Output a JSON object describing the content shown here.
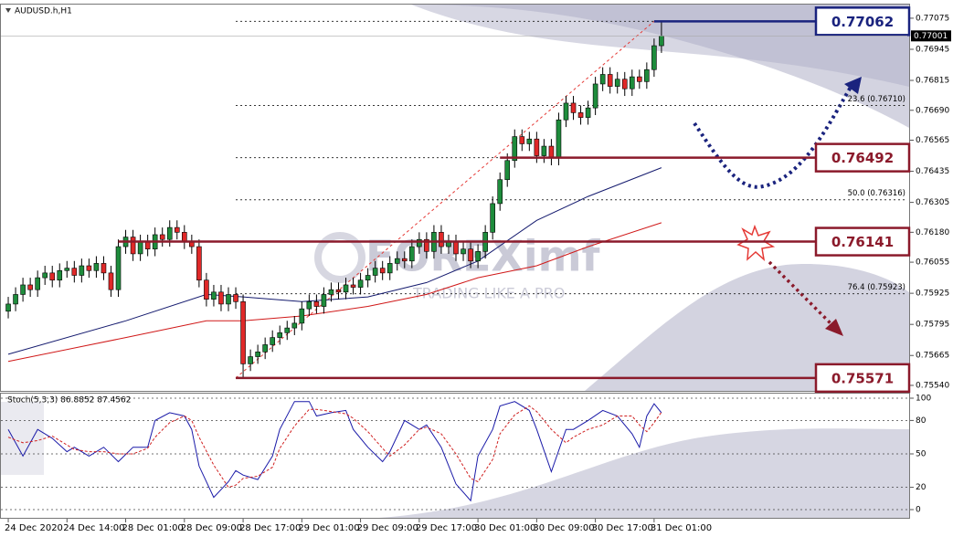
{
  "chart_data": [
    {
      "type": "candlestick",
      "title": "AUDUSD.h,H1",
      "open": [
        0.7585,
        0.7588,
        0.7592,
        0.7596,
        0.7594,
        0.7599,
        0.7601,
        0.7598,
        0.7602,
        0.7603,
        0.76,
        0.7604,
        0.7602,
        0.7605,
        0.7601,
        0.7594,
        0.7612,
        0.7616,
        0.7609,
        0.7614,
        0.7611,
        0.7617,
        0.7615,
        0.762,
        0.7618,
        0.7614,
        0.7612,
        0.7598,
        0.759,
        0.7593,
        0.7588,
        0.7592,
        0.7589,
        0.7563,
        0.7566,
        0.7568,
        0.7571,
        0.7574,
        0.7576,
        0.7578,
        0.758,
        0.7586,
        0.7589,
        0.7587,
        0.7592,
        0.7594,
        0.7593,
        0.7596,
        0.7595,
        0.7598,
        0.76,
        0.7603,
        0.7601,
        0.7605,
        0.7607,
        0.7606,
        0.7612,
        0.7615,
        0.761,
        0.7618,
        0.7612,
        0.7614,
        0.7609,
        0.7611,
        0.7606,
        0.761,
        0.7618,
        0.763,
        0.764,
        0.7648,
        0.7658,
        0.7655,
        0.7657,
        0.765,
        0.7654,
        0.7649,
        0.7665,
        0.7672,
        0.7668,
        0.7666,
        0.767,
        0.768,
        0.7684,
        0.7679,
        0.7682,
        0.7678,
        0.7683,
        0.7681,
        0.7686,
        0.7696
      ],
      "high": [
        0.7591,
        0.7595,
        0.7599,
        0.7599,
        0.7602,
        0.7604,
        0.7604,
        0.7605,
        0.7606,
        0.7606,
        0.7607,
        0.7607,
        0.7608,
        0.7608,
        0.7604,
        0.7615,
        0.7619,
        0.7619,
        0.7617,
        0.7617,
        0.762,
        0.762,
        0.7623,
        0.7623,
        0.7621,
        0.7617,
        0.7615,
        0.7601,
        0.7596,
        0.7596,
        0.7595,
        0.7595,
        0.7592,
        0.7569,
        0.7571,
        0.7574,
        0.7577,
        0.7579,
        0.7581,
        0.7583,
        0.7589,
        0.7592,
        0.7592,
        0.7595,
        0.7597,
        0.7597,
        0.7599,
        0.7599,
        0.7601,
        0.7603,
        0.7606,
        0.7606,
        0.7608,
        0.761,
        0.761,
        0.7615,
        0.7618,
        0.7618,
        0.7621,
        0.7621,
        0.7617,
        0.7617,
        0.7614,
        0.7614,
        0.7613,
        0.7621,
        0.7633,
        0.7643,
        0.7651,
        0.7661,
        0.7661,
        0.766,
        0.766,
        0.7657,
        0.7657,
        0.7668,
        0.7675,
        0.7675,
        0.7671,
        0.7673,
        0.7683,
        0.7687,
        0.7687,
        0.7685,
        0.7685,
        0.7686,
        0.7686,
        0.7689,
        0.7699,
        0.77062
      ],
      "low": [
        0.7582,
        0.7585,
        0.7589,
        0.7591,
        0.7591,
        0.7596,
        0.7595,
        0.7595,
        0.7599,
        0.7597,
        0.7597,
        0.7599,
        0.7599,
        0.7598,
        0.7591,
        0.7591,
        0.7609,
        0.7606,
        0.7606,
        0.7608,
        0.7608,
        0.7612,
        0.7612,
        0.7615,
        0.7611,
        0.7609,
        0.7595,
        0.7587,
        0.7587,
        0.7585,
        0.7585,
        0.7586,
        0.75571,
        0.756,
        0.7563,
        0.7565,
        0.7568,
        0.7571,
        0.7573,
        0.7575,
        0.7577,
        0.7583,
        0.7584,
        0.7584,
        0.7589,
        0.759,
        0.759,
        0.7592,
        0.7592,
        0.7595,
        0.7597,
        0.7598,
        0.7598,
        0.7602,
        0.7603,
        0.7603,
        0.7609,
        0.7607,
        0.7607,
        0.7609,
        0.7609,
        0.7606,
        0.7606,
        0.7603,
        0.7603,
        0.7607,
        0.7615,
        0.7627,
        0.7637,
        0.7645,
        0.7652,
        0.7652,
        0.7647,
        0.7647,
        0.7646,
        0.7646,
        0.7662,
        0.7665,
        0.7663,
        0.7663,
        0.7667,
        0.7677,
        0.7676,
        0.7676,
        0.7675,
        0.7675,
        0.7678,
        0.7678,
        0.7683,
        0.7693
      ],
      "close": [
        0.7588,
        0.7592,
        0.7596,
        0.7594,
        0.7599,
        0.7601,
        0.7598,
        0.7602,
        0.7603,
        0.76,
        0.7604,
        0.7602,
        0.7605,
        0.7601,
        0.7594,
        0.7612,
        0.7616,
        0.7609,
        0.7614,
        0.7611,
        0.7617,
        0.7615,
        0.762,
        0.7618,
        0.7614,
        0.7612,
        0.7598,
        0.759,
        0.7593,
        0.7588,
        0.7592,
        0.7589,
        0.7563,
        0.7566,
        0.7568,
        0.7571,
        0.7574,
        0.7576,
        0.7578,
        0.758,
        0.7586,
        0.7589,
        0.7587,
        0.7592,
        0.7594,
        0.7593,
        0.7596,
        0.7595,
        0.7598,
        0.76,
        0.7603,
        0.7601,
        0.7605,
        0.7607,
        0.7606,
        0.7612,
        0.7615,
        0.761,
        0.7618,
        0.7612,
        0.7614,
        0.7609,
        0.7611,
        0.7606,
        0.761,
        0.7618,
        0.763,
        0.764,
        0.7648,
        0.7658,
        0.7655,
        0.7657,
        0.765,
        0.7654,
        0.7649,
        0.7665,
        0.7672,
        0.7668,
        0.7666,
        0.767,
        0.768,
        0.7684,
        0.7679,
        0.7682,
        0.7678,
        0.7683,
        0.7681,
        0.7686,
        0.7696,
        0.77001
      ],
      "up_color": "#1e8c3c",
      "down_color": "#e02828",
      "xlim": [
        -1,
        122.5
      ],
      "ylim": [
        0.75517,
        0.77132
      ],
      "yticks": [
        0.77075,
        0.76945,
        0.76815,
        {
          "value": 0.7669,
          "label": "0.76690"
        },
        0.76565,
        0.76435,
        0.76305,
        {
          "value": 0.7618,
          "label": "0.76180"
        },
        0.76055,
        0.75925,
        0.75795,
        0.75665,
        {
          "value": 0.7554,
          "label": "0.75540"
        }
      ],
      "xticks": [
        {
          "value": 0,
          "label": "24 Dec 2020"
        },
        {
          "value": 8,
          "label": "24 Dec 14:00"
        },
        {
          "value": 16,
          "label": "28 Dec 01:00"
        },
        {
          "value": 24,
          "label": "28 Dec 09:00"
        },
        {
          "value": 32,
          "label": "28 Dec 17:00"
        },
        {
          "value": 40,
          "label": "29 Dec 01:00"
        },
        {
          "value": 48,
          "label": "29 Dec 09:00"
        },
        {
          "value": 56,
          "label": "29 Dec 17:00"
        },
        {
          "value": 64,
          "label": "30 Dec 01:00"
        },
        {
          "value": 72,
          "label": "30 Dec 09:00"
        },
        {
          "value": 80,
          "label": "30 Dec 17:00"
        },
        {
          "value": 88,
          "label": "31 Dec 01:00"
        }
      ],
      "current_price": 0.77001,
      "overlays": [
        {
          "color": "#141a6e",
          "x": [
            0,
            16,
            27,
            32,
            40,
            49,
            57,
            64,
            72,
            79,
            89
          ],
          "values": [
            0.7567,
            0.7581,
            0.7592,
            0.7591,
            0.7589,
            0.7591,
            0.7597,
            0.7606,
            0.7623,
            0.7633,
            0.7645
          ]
        },
        {
          "color": "#d01818",
          "x": [
            0,
            16,
            27,
            32,
            40,
            49,
            57,
            64,
            72,
            79,
            89
          ],
          "values": [
            0.7564,
            0.7574,
            0.7581,
            0.7581,
            0.7583,
            0.7587,
            0.7592,
            0.7599,
            0.7604,
            0.7612,
            0.7622
          ]
        }
      ],
      "levels": [
        {
          "value": 0.77062,
          "x": 88,
          "color": "#1a237e"
        },
        {
          "value": 0.76492,
          "x": 67,
          "color": "#8b1a2b"
        },
        {
          "value": 0.76141,
          "x": 15,
          "color": "#8b1a2b"
        },
        {
          "value": 0.75571,
          "x": 31,
          "color": "#8b1a2b"
        }
      ],
      "fib_levels": [
        {
          "value": 0.7671,
          "label": "23.6 (0.76710)"
        },
        {
          "value": 0.76316,
          "label": "50.0 (0.76316)"
        },
        {
          "value": 0.75923,
          "label": "76.4 (0.75923)"
        }
      ],
      "watermark": {
        "brand": "FOREXimf",
        "tagline": "TRADING LIKE A PRO"
      }
    },
    {
      "type": "line",
      "title": "Stoch(5,3,3) 86.8852 87.4562",
      "xlim": [
        -1,
        122.5
      ],
      "ylim": [
        0,
        100
      ],
      "yticks": [
        0,
        20,
        50,
        80,
        100
      ],
      "x": [
        0,
        2,
        4,
        6,
        8,
        9,
        11,
        13,
        15,
        17,
        19,
        20,
        22,
        24,
        25,
        26,
        28,
        30,
        31,
        32,
        34,
        36,
        37,
        39,
        41,
        42,
        44,
        46,
        47,
        49,
        51,
        52,
        54,
        56,
        57,
        59,
        61,
        63,
        64,
        66,
        67,
        69,
        71,
        72,
        74,
        76,
        77,
        79,
        81,
        83,
        85,
        86,
        87,
        88,
        89
      ],
      "series": [
        {
          "color": "#1a1aa8",
          "dashed": false,
          "values": [
            72,
            48,
            72,
            64,
            52,
            56,
            48,
            56,
            43,
            56,
            56,
            80,
            87,
            84,
            72,
            39,
            11,
            25,
            35,
            31,
            27,
            48,
            72,
            97,
            97,
            84,
            87,
            89,
            72,
            56,
            43,
            52,
            80,
            72,
            76,
            56,
            23,
            8,
            48,
            72,
            93,
            97,
            89,
            72,
            34,
            72,
            72,
            80,
            89,
            84,
            68,
            56,
            84,
            95,
            86.8852
          ]
        },
        {
          "color": "#d02020",
          "dashed": true,
          "values": [
            65,
            60,
            62,
            66,
            58,
            54,
            52,
            52,
            50,
            50,
            55,
            65,
            78,
            84,
            80,
            65,
            40,
            20,
            22,
            28,
            30,
            38,
            55,
            75,
            90,
            90,
            88,
            86,
            82,
            70,
            55,
            48,
            58,
            72,
            74,
            68,
            50,
            28,
            25,
            45,
            68,
            85,
            93,
            88,
            72,
            60,
            65,
            72,
            76,
            84,
            84,
            76,
            70,
            78,
            87.4562
          ]
        }
      ]
    }
  ]
}
